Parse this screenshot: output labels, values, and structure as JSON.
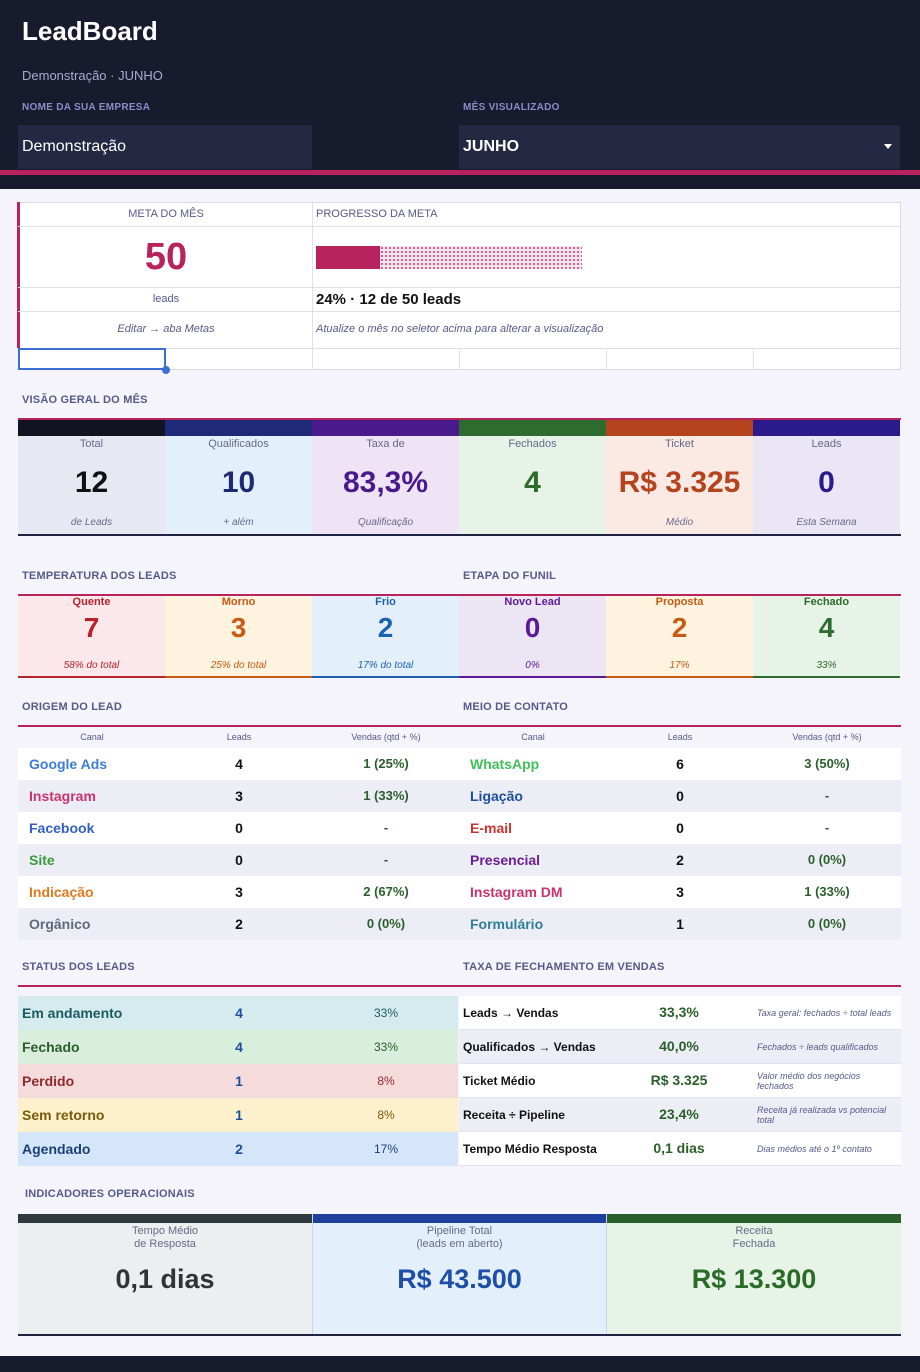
{
  "app": {
    "title": "LeadBoard",
    "subtitle": "Demonstração · JUNHO"
  },
  "selectors": {
    "company_label": "NOME DA SUA EMPRESA",
    "company_value": "Demonstração",
    "month_label": "MÊS VISUALIZADO",
    "month_value": "JUNHO"
  },
  "meta": {
    "label": "META DO MÊS",
    "value": "50",
    "unit": "leads",
    "edit_hint": "Editar → aba Metas",
    "progress_label": "PROGRESSO DA META",
    "progress_fraction": 0.24,
    "progress_text": "24% · 12 de 50 leads",
    "progress_note": "Atualize o mês no seletor acima para alterar a visualização"
  },
  "overview": {
    "title": "VISÃO GERAL DO MÊS",
    "cards": [
      {
        "label": "Total",
        "value": "12",
        "sub": "de Leads",
        "bar": "#111320",
        "bg": "#e8e8f2",
        "color": "#111"
      },
      {
        "label": "Qualificados",
        "value": "10",
        "sub": "+ além",
        "bar": "#1e2a78",
        "bg": "#e3f0fb",
        "color": "#1e2a78"
      },
      {
        "label": "Taxa de",
        "value": "83,3%",
        "sub": "Qualificação",
        "bar": "#4a1a8c",
        "bg": "#efe4f5",
        "color": "#4a1a8c"
      },
      {
        "label": "Fechados",
        "value": "4",
        "sub": "",
        "bar": "#2e6b2e",
        "bg": "#e6f3e6",
        "color": "#2e6b2e"
      },
      {
        "label": "Ticket",
        "value": "R$ 3.325",
        "sub": "Médio",
        "bar": "#b5431e",
        "bg": "#fbe9e4",
        "color": "#b5431e"
      },
      {
        "label": "Leads",
        "value": "0",
        "sub": "Esta Semana",
        "bar": "#2a1a8c",
        "bg": "#ebe6f5",
        "color": "#2a1a8c"
      }
    ]
  },
  "temperature": {
    "title": "TEMPERATURA DOS LEADS",
    "cards": [
      {
        "label": "Quente",
        "value": "7",
        "sub": "58% do total",
        "color": "#b8232e",
        "bg": "#fce8ea"
      },
      {
        "label": "Morno",
        "value": "3",
        "sub": "25% do total",
        "color": "#c75a14",
        "bg": "#fdf3df"
      },
      {
        "label": "Frio",
        "value": "2",
        "sub": "17% do total",
        "color": "#1d62b0",
        "bg": "#e3effb"
      }
    ]
  },
  "funnel": {
    "title": "ETAPA DO FUNIL",
    "cards": [
      {
        "label": "Novo Lead",
        "value": "0",
        "sub": "0%",
        "color": "#5a1a96",
        "bg": "#ece6f4"
      },
      {
        "label": "Proposta",
        "value": "2",
        "sub": "17%",
        "color": "#c75a14",
        "bg": "#fdf3df"
      },
      {
        "label": "Fechado",
        "value": "4",
        "sub": "33%",
        "color": "#2e6b2e",
        "bg": "#e6f3e6"
      }
    ]
  },
  "origin": {
    "title": "ORIGEM DO LEAD",
    "headers": [
      "Canal",
      "Leads",
      "Vendas (qtd + %)"
    ],
    "rows": [
      {
        "canal": "Google Ads",
        "leads": "4",
        "vendas": "1 (25%)",
        "color": "#3b7dd8"
      },
      {
        "canal": "Instagram",
        "leads": "3",
        "vendas": "1 (33%)",
        "color": "#c8346b"
      },
      {
        "canal": "Facebook",
        "leads": "0",
        "vendas": "-",
        "color": "#2f5fc4"
      },
      {
        "canal": "Site",
        "leads": "0",
        "vendas": "-",
        "color": "#3a9a3a"
      },
      {
        "canal": "Indicação",
        "leads": "3",
        "vendas": "2 (67%)",
        "color": "#e07a1e"
      },
      {
        "canal": "Orgânico",
        "leads": "2",
        "vendas": "0 (0%)",
        "color": "#5e6a7a"
      }
    ]
  },
  "contact": {
    "title": "MEIO DE CONTATO",
    "headers": [
      "Canal",
      "Leads",
      "Vendas (qtd + %)"
    ],
    "rows": [
      {
        "canal": "WhatsApp",
        "leads": "6",
        "vendas": "3 (50%)",
        "color": "#3fc05a"
      },
      {
        "canal": "Ligação",
        "leads": "0",
        "vendas": "-",
        "color": "#1d4e9e"
      },
      {
        "canal": "E-mail",
        "leads": "0",
        "vendas": "-",
        "color": "#c8342e"
      },
      {
        "canal": "Presencial",
        "leads": "2",
        "vendas": "0 (0%)",
        "color": "#6a1e9a"
      },
      {
        "canal": "Instagram DM",
        "leads": "3",
        "vendas": "1 (33%)",
        "color": "#c8346b"
      },
      {
        "canal": "Formulário",
        "leads": "1",
        "vendas": "0 (0%)",
        "color": "#2f7f9a"
      }
    ]
  },
  "status": {
    "title": "STATUS DOS LEADS",
    "rows": [
      {
        "label": "Em andamento",
        "count": "4",
        "pct": "33%",
        "bg": "#d5ebee",
        "color": "#1c5a62"
      },
      {
        "label": "Fechado",
        "count": "4",
        "pct": "33%",
        "bg": "#d9eedc",
        "color": "#2a5e2a"
      },
      {
        "label": "Perdido",
        "count": "1",
        "pct": "8%",
        "bg": "#f6dbdc",
        "color": "#8e2a2e"
      },
      {
        "label": "Sem retorno",
        "count": "1",
        "pct": "8%",
        "bg": "#fdf0cc",
        "color": "#7a5a08"
      },
      {
        "label": "Agendado",
        "count": "2",
        "pct": "17%",
        "bg": "#d6e6fa",
        "color": "#1d3f78"
      }
    ]
  },
  "closing": {
    "title": "TAXA DE FECHAMENTO EM VENDAS",
    "rows": [
      {
        "label": "Leads → Vendas",
        "value": "33,3%",
        "note": "Taxa geral: fechados ÷ total leads"
      },
      {
        "label": "Qualificados → Vendas",
        "value": "40,0%",
        "note": "Fechados ÷ leads qualificados"
      },
      {
        "label": "Ticket Médio",
        "value": "R$ 3.325",
        "note": "Valor médio dos negócios fechados"
      },
      {
        "label": "Receita ÷ Pipeline",
        "value": "23,4%",
        "note": "Receita já realizada vs potencial total"
      },
      {
        "label": "Tempo Médio Resposta",
        "value": "0,1 dias",
        "note": "Dias médios até o 1º contato"
      }
    ]
  },
  "operational": {
    "title": "INDICADORES OPERACIONAIS",
    "cards": [
      {
        "label1": "Tempo Médio",
        "label2": "de Resposta",
        "value": "0,1 dias",
        "bar": "#2f3a40",
        "bg": "#eceef0",
        "color": "#333"
      },
      {
        "label1": "Pipeline Total",
        "label2": "(leads em aberto)",
        "value": "R$ 43.500",
        "bar": "#1e3f9e",
        "bg": "#e3effb",
        "color": "#1e4ea8"
      },
      {
        "label1": "Receita",
        "label2": "Fechada",
        "value": "R$ 13.300",
        "bar": "#2a5e2a",
        "bg": "#e6f3e6",
        "color": "#2a6b2a"
      }
    ]
  }
}
